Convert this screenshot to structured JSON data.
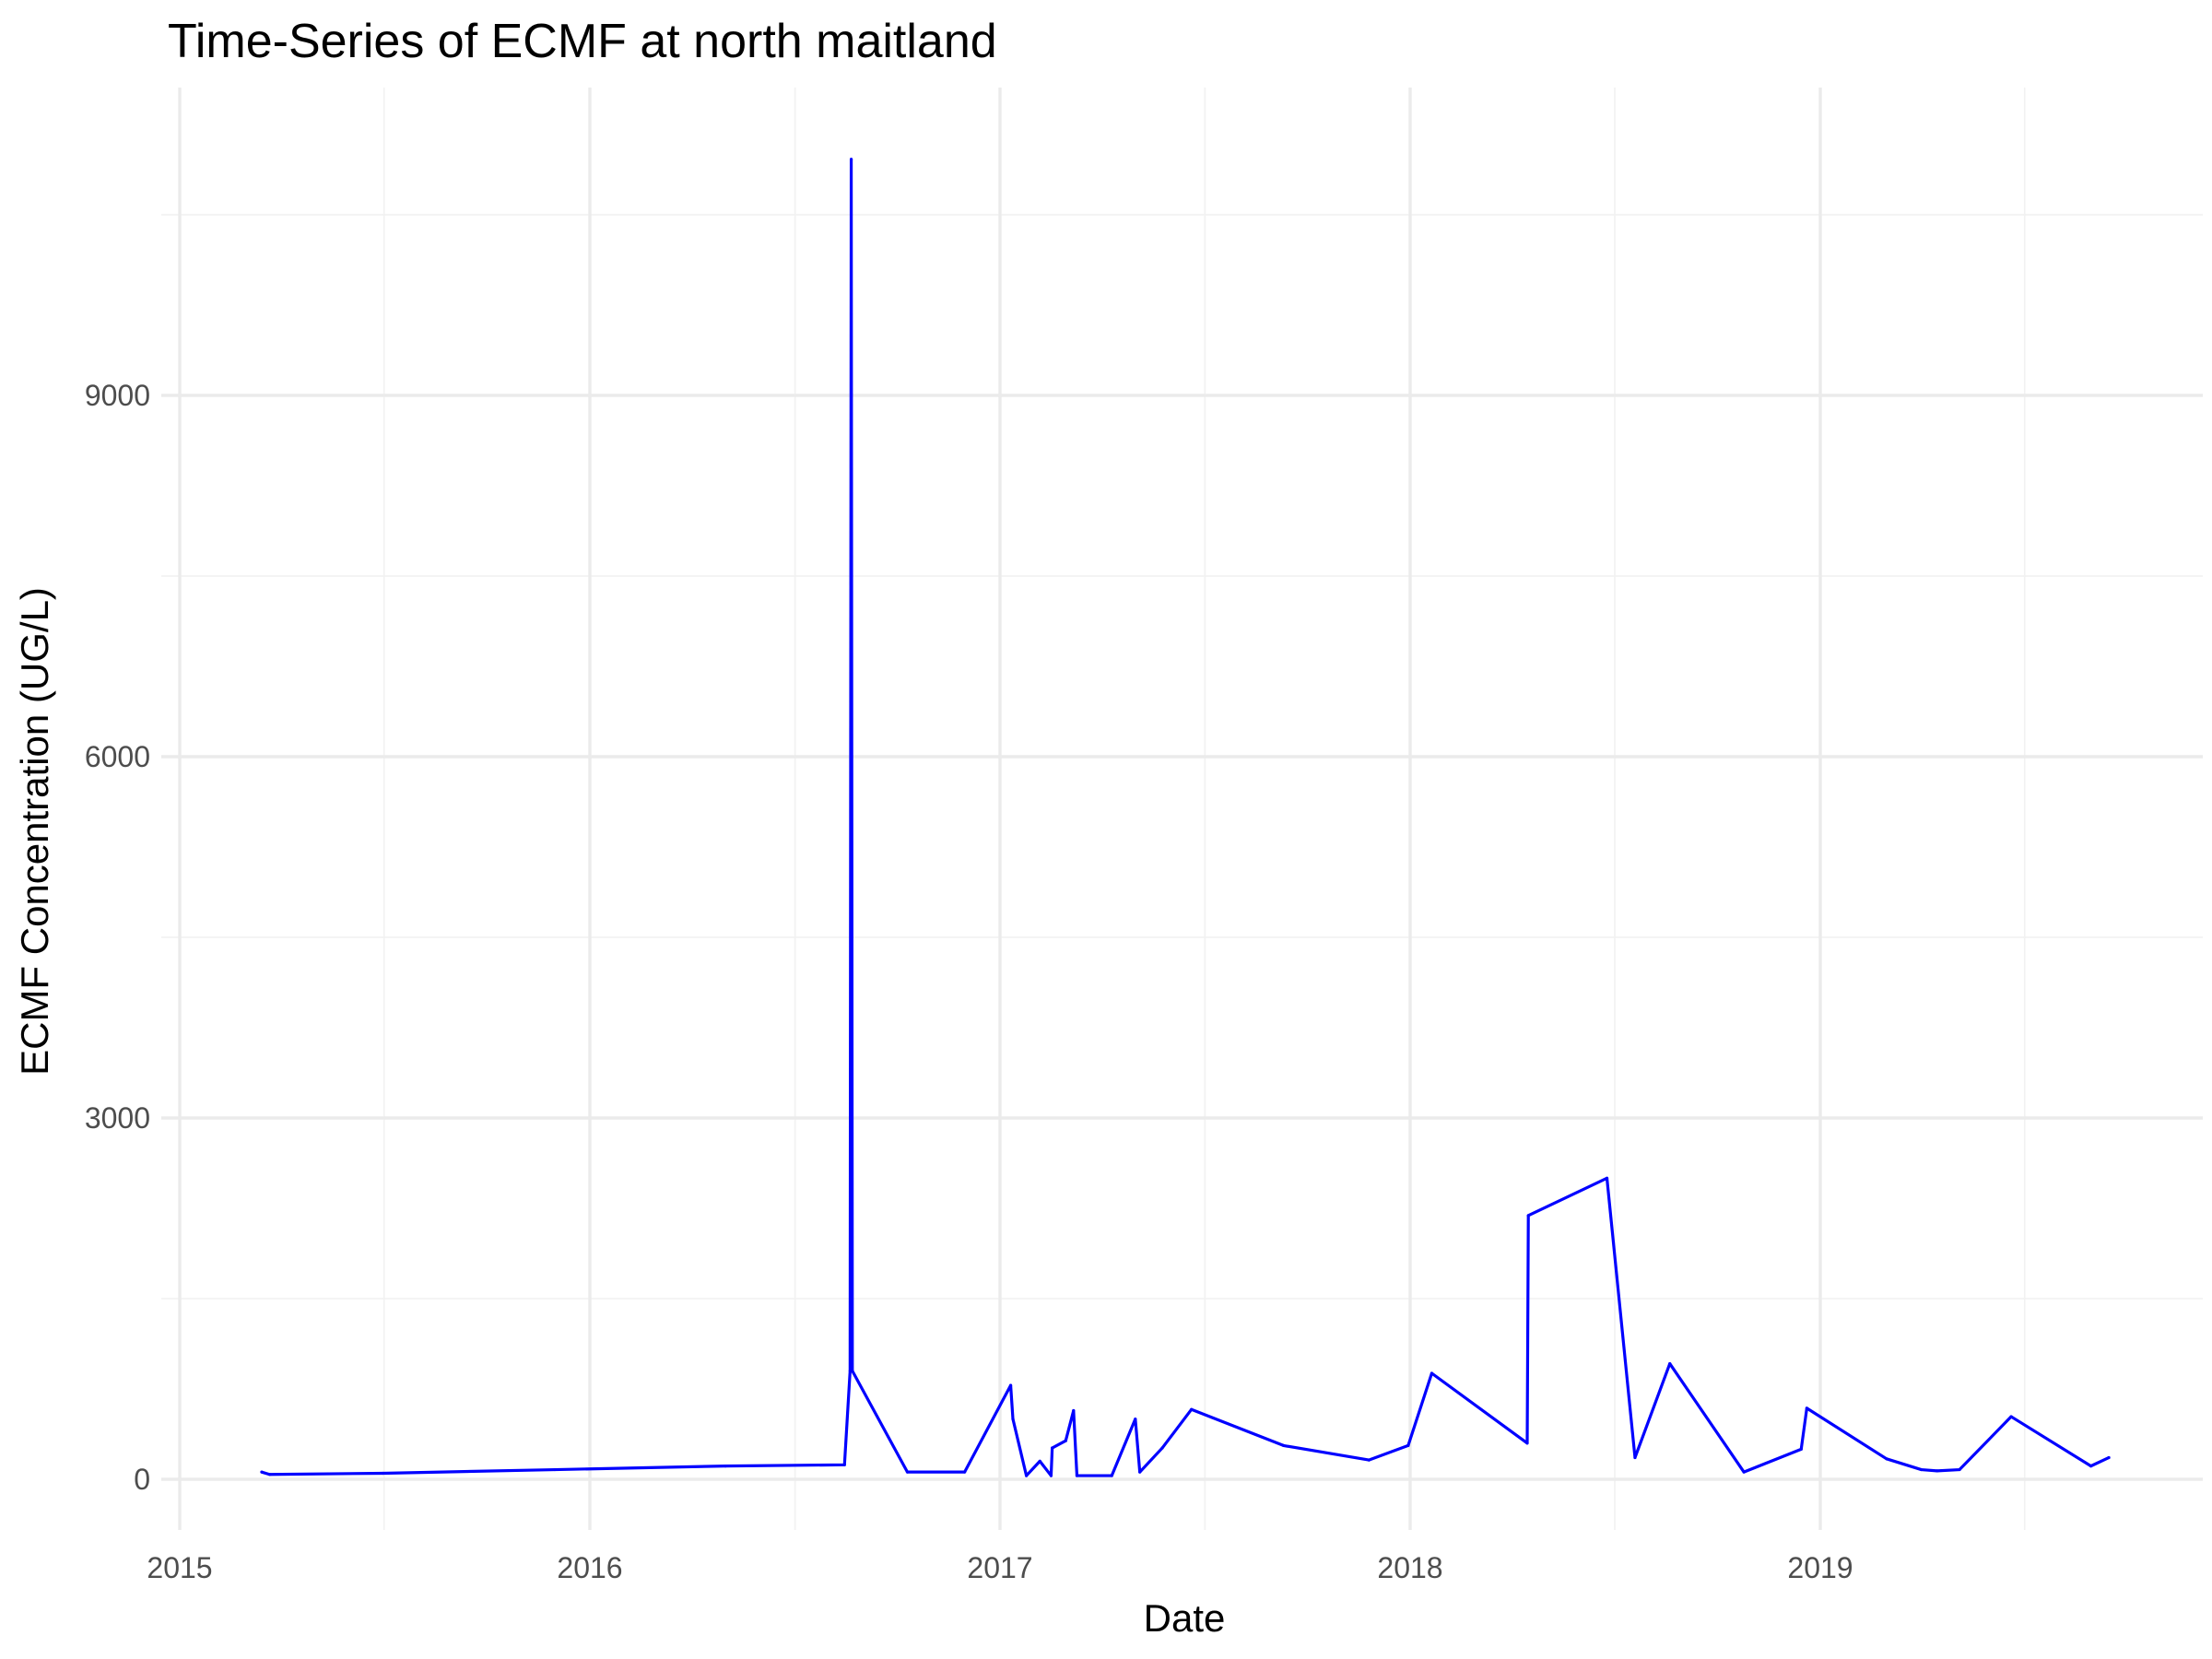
{
  "chart_data": {
    "type": "line",
    "title": "Time-Series of ECMF at north maitland",
    "xlabel": "Date",
    "ylabel": "ECMF Concentration (UG/L)",
    "x_ticks": [
      "2015",
      "2016",
      "2017",
      "2018",
      "2019"
    ],
    "y_ticks": [
      "0",
      "3000",
      "6000",
      "9000"
    ],
    "x_range": [
      "2015-01-01",
      "2019-12-31"
    ],
    "ylim": [
      -450,
      11450
    ],
    "grid": true,
    "legend": "none",
    "line_color": "#0000ff",
    "series": [
      {
        "points": [
          [
            "2015-03-15",
            60
          ],
          [
            "2015-03-22",
            40
          ],
          [
            "2015-07-01",
            50
          ],
          [
            "2015-12-01",
            80
          ],
          [
            "2016-05-01",
            110
          ],
          [
            "2016-08-15",
            120
          ],
          [
            "2016-08-20",
            900
          ],
          [
            "2016-08-21",
            10960
          ],
          [
            "2016-08-22",
            900
          ],
          [
            "2016-10-10",
            60
          ],
          [
            "2016-11-30",
            60
          ],
          [
            "2017-01-10",
            780
          ],
          [
            "2017-01-12",
            500
          ],
          [
            "2017-01-24",
            30
          ],
          [
            "2017-02-05",
            150
          ],
          [
            "2017-02-15",
            30
          ],
          [
            "2017-02-16",
            260
          ],
          [
            "2017-02-28",
            320
          ],
          [
            "2017-03-07",
            570
          ],
          [
            "2017-03-10",
            30
          ],
          [
            "2017-04-10",
            30
          ],
          [
            "2017-05-01",
            500
          ],
          [
            "2017-05-05",
            60
          ],
          [
            "2017-05-25",
            260
          ],
          [
            "2017-06-20",
            580
          ],
          [
            "2017-09-10",
            280
          ],
          [
            "2017-11-25",
            160
          ],
          [
            "2017-12-30",
            280
          ],
          [
            "2018-01-20",
            880
          ],
          [
            "2018-04-15",
            300
          ],
          [
            "2018-04-16",
            2190
          ],
          [
            "2018-06-25",
            2500
          ],
          [
            "2018-07-20",
            180
          ],
          [
            "2018-08-20",
            960
          ],
          [
            "2018-10-25",
            60
          ],
          [
            "2018-12-15",
            250
          ],
          [
            "2018-12-20",
            590
          ],
          [
            "2019-03-01",
            170
          ],
          [
            "2019-04-01",
            80
          ],
          [
            "2019-04-15",
            70
          ],
          [
            "2019-05-05",
            80
          ],
          [
            "2019-06-20",
            520
          ],
          [
            "2019-08-30",
            110
          ],
          [
            "2019-09-15",
            180
          ]
        ]
      }
    ]
  }
}
